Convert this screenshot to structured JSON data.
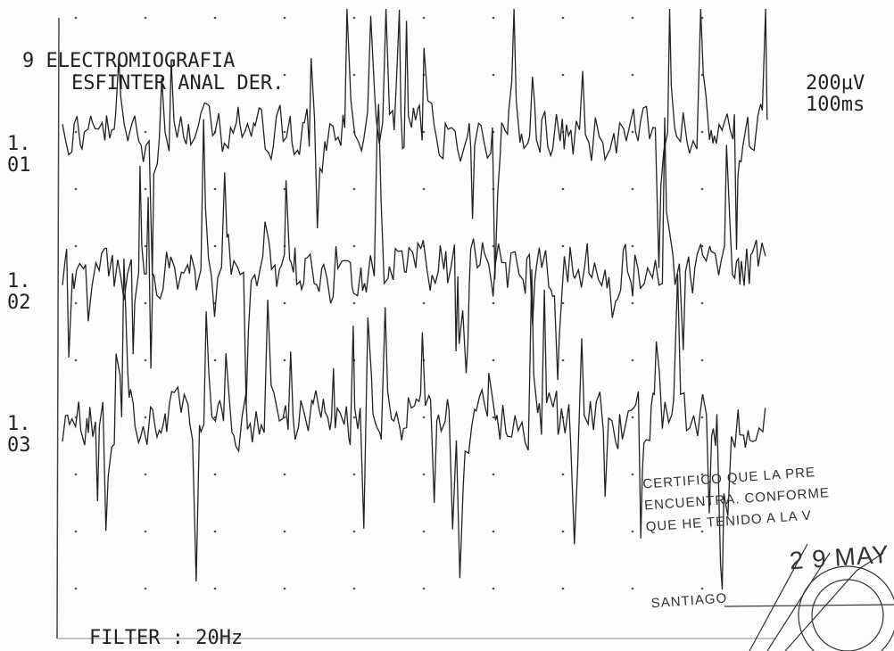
{
  "header": {
    "title": "9 ELECTROMIOGRAFIA",
    "subtitle": "ESFINTER ANAL DER.",
    "scale": {
      "amplitude": "200µV",
      "time": "100ms"
    }
  },
  "channels": [
    {
      "label": "1.",
      "number": "01"
    },
    {
      "label": "1.",
      "number": "02"
    },
    {
      "label": "1.",
      "number": "03"
    }
  ],
  "footer": {
    "filter": "FILTER : 20Hz"
  },
  "stamp": {
    "lines": [
      "CERTIFICO QUE LA PRE",
      "ENCUENTRA. CONFORME",
      "QUE HE TENIDO A LA V"
    ],
    "date": "2 9 MAY",
    "place": "SANTIAGO"
  }
}
